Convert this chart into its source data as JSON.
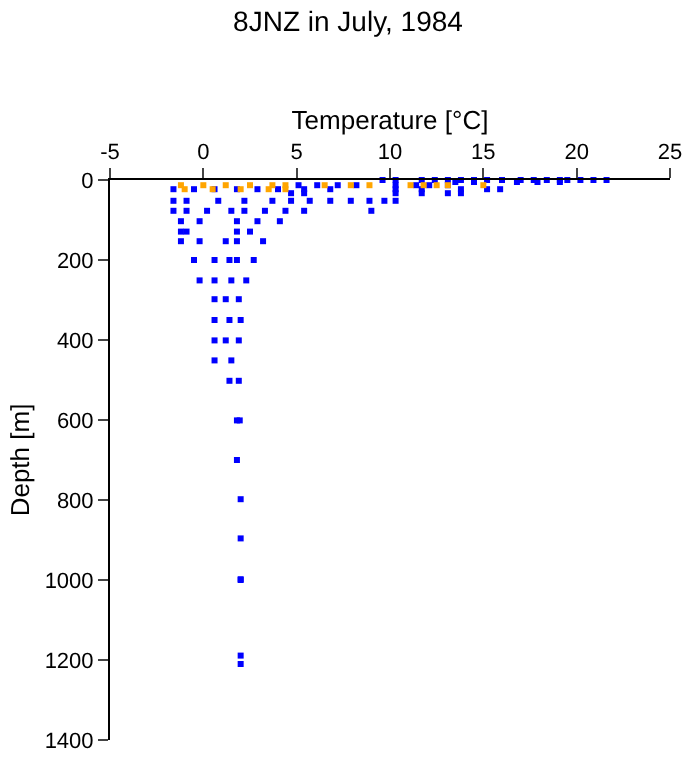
{
  "chart_data": {
    "type": "scatter",
    "title": "8JNZ in July, 1984",
    "xlabel": "Temperature [°C]",
    "ylabel": "Depth [m]",
    "xlim": [
      -5,
      25
    ],
    "xticks": [
      -5,
      0,
      5,
      10,
      15,
      20,
      25
    ],
    "ylim": [
      1400,
      0
    ],
    "yticks": [
      0,
      200,
      400,
      600,
      800,
      1000,
      1200,
      1400
    ],
    "marker": "square",
    "series": [
      {
        "color": "#0000ff",
        "x": [
          9.6,
          10.3,
          11.7,
          12.4,
          13.1,
          13.8,
          14.5,
          15.2,
          16.0,
          17.0,
          17.7,
          18.4,
          19.1,
          19.5,
          20.2,
          20.9,
          21.6,
          13.5,
          14.5,
          16.8,
          17.9,
          19.1,
          5.1,
          6.1,
          7.2,
          8.2,
          10.3,
          11.4,
          12.1,
          13.1,
          -1.6,
          -0.5,
          0.6,
          1.8,
          2.9,
          4.0,
          5.4,
          6.8,
          10.3,
          11.7,
          13.8,
          15.2,
          15.9,
          4.7,
          5.4,
          10.3,
          11.7,
          13.1,
          13.8,
          -1.6,
          -0.9,
          0.8,
          2.2,
          3.7,
          4.7,
          5.7,
          6.8,
          7.9,
          8.9,
          9.7,
          10.3,
          -1.6,
          -0.9,
          0.2,
          1.5,
          2.2,
          3.3,
          4.4,
          5.4,
          9.0,
          -1.2,
          -0.2,
          1.8,
          2.9,
          4.1,
          -1.2,
          -0.9,
          1.8,
          2.5,
          -1.2,
          -0.2,
          1.2,
          1.8,
          3.2,
          -0.5,
          0.6,
          1.4,
          1.8,
          2.7,
          -0.2,
          0.6,
          1.5,
          2.3,
          0.6,
          1.2,
          1.9,
          0.6,
          1.4,
          2.0,
          0.6,
          1.2,
          1.9,
          0.6,
          1.5,
          1.4,
          1.9,
          1.8,
          1.95,
          1.8,
          2.0,
          2.0,
          2.0,
          2.0,
          2.0,
          2.0
        ],
        "values": [
          0,
          0,
          0,
          0,
          0,
          0,
          0,
          0,
          0,
          0,
          0,
          0,
          0,
          0,
          0,
          0,
          0,
          5,
          5,
          5,
          5,
          5,
          13,
          13,
          13,
          13,
          13,
          13,
          13,
          13,
          23,
          23,
          23,
          23,
          23,
          23,
          23,
          23,
          23,
          23,
          23,
          23,
          23,
          33,
          33,
          33,
          33,
          33,
          33,
          52,
          52,
          52,
          52,
          52,
          52,
          52,
          52,
          52,
          52,
          52,
          52,
          77,
          77,
          77,
          77,
          77,
          77,
          77,
          77,
          77,
          103,
          103,
          103,
          103,
          103,
          129,
          129,
          129,
          129,
          153,
          153,
          153,
          153,
          153,
          200,
          200,
          200,
          200,
          200,
          251,
          251,
          251,
          251,
          298,
          298,
          298,
          350,
          350,
          350,
          401,
          401,
          401,
          451,
          451,
          502,
          502,
          601,
          601,
          700,
          798,
          896,
          998,
          1000,
          1189,
          1210
        ]
      },
      {
        "color": "#ffa500",
        "x": [
          -1.2,
          0.0,
          1.2,
          2.5,
          3.7,
          4.4,
          6.5,
          7.9,
          8.9,
          11.1,
          11.8,
          12.5,
          13.1,
          15.0,
          -1.0,
          0.5,
          2.0,
          3.5,
          4.4
        ],
        "values": [
          13,
          13,
          13,
          13,
          13,
          13,
          13,
          13,
          13,
          13,
          13,
          13,
          13,
          13,
          23,
          23,
          23,
          23,
          23
        ]
      }
    ]
  }
}
